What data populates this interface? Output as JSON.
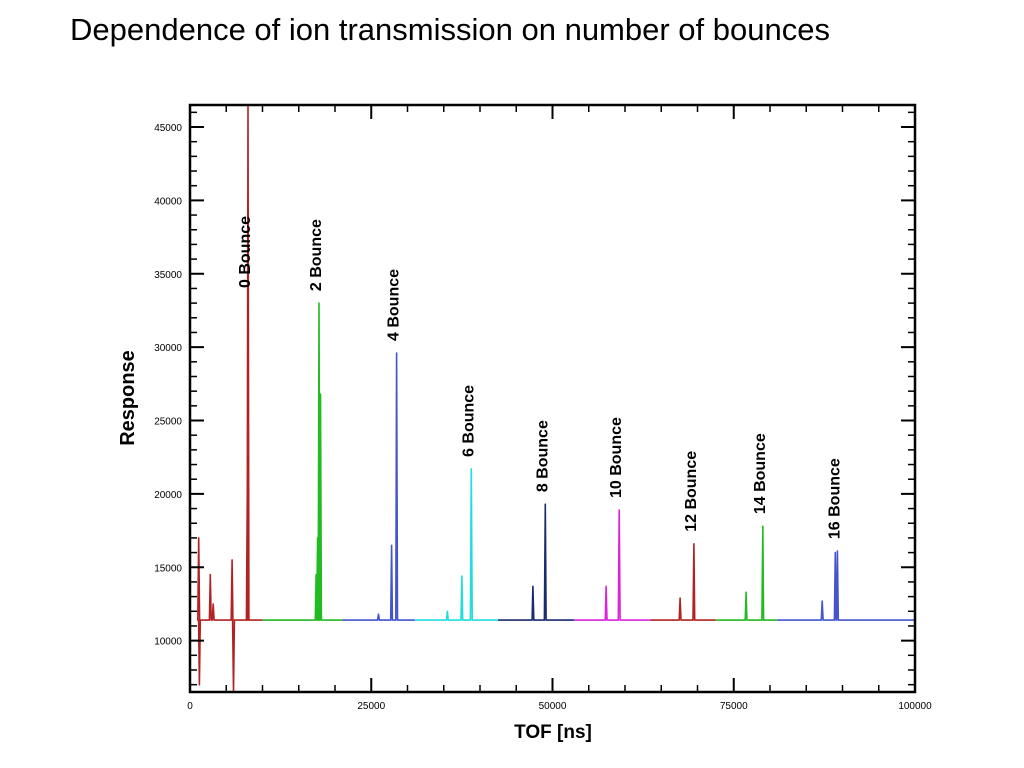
{
  "slide": {
    "title": "Dependence of ion transmission on number of bounces"
  },
  "chart_data": {
    "type": "line",
    "title": "",
    "xlabel": "TOF [ns]",
    "ylabel": "Response",
    "xlim": [
      0,
      100000
    ],
    "ylim": [
      6500,
      46500
    ],
    "x_ticks": [
      0,
      25000,
      50000,
      75000,
      100000
    ],
    "y_ticks": [
      10000,
      15000,
      20000,
      25000,
      30000,
      35000,
      40000,
      45000
    ],
    "grid": false,
    "baseline": 11400,
    "segments": [
      {
        "label": "0 Bounce",
        "color": "#b22222",
        "x_range": [
          1000,
          10000
        ],
        "peak_x": 8000,
        "peak_y": 46500,
        "extra_peaks": [
          [
            1200,
            17000
          ],
          [
            2800,
            14500
          ],
          [
            3200,
            12500
          ],
          [
            5800,
            15500
          ],
          [
            7900,
            20000
          ]
        ],
        "dips": [
          [
            1300,
            7000
          ],
          [
            6000,
            6500
          ]
        ]
      },
      {
        "label": "2 Bounce",
        "color": "#22bb22",
        "x_range": [
          10000,
          21000
        ],
        "peak_x": 17800,
        "peak_y": 33000,
        "extra_peaks": [
          [
            17400,
            14500
          ],
          [
            17600,
            17000
          ],
          [
            18000,
            26800
          ]
        ]
      },
      {
        "label": "4 Bounce",
        "color": "#4455cc",
        "x_range": [
          21000,
          31000
        ],
        "peak_x": 28500,
        "peak_y": 29600,
        "extra_peaks": [
          [
            27800,
            16500
          ],
          [
            26000,
            11800
          ]
        ]
      },
      {
        "label": "6 Bounce",
        "color": "#22dddd",
        "x_range": [
          31000,
          42500
        ],
        "peak_x": 38800,
        "peak_y": 21700,
        "extra_peaks": [
          [
            37500,
            14400
          ],
          [
            35500,
            12000
          ]
        ]
      },
      {
        "label": "8 Bounce",
        "color": "#1a2a6c",
        "x_range": [
          42500,
          53000
        ],
        "peak_x": 49000,
        "peak_y": 19300,
        "extra_peaks": [
          [
            47300,
            13700
          ]
        ]
      },
      {
        "label": "10 Bounce",
        "color": "#dd22dd",
        "x_range": [
          53000,
          63500
        ],
        "peak_x": 59200,
        "peak_y": 18900,
        "extra_peaks": [
          [
            57400,
            13700
          ]
        ]
      },
      {
        "label": "12 Bounce",
        "color": "#b22222",
        "x_range": [
          63500,
          72500
        ],
        "peak_x": 69500,
        "peak_y": 16600,
        "extra_peaks": [
          [
            67600,
            12900
          ]
        ]
      },
      {
        "label": "14 Bounce",
        "color": "#22bb22",
        "x_range": [
          72500,
          81000
        ],
        "peak_x": 79000,
        "peak_y": 17800,
        "extra_peaks": [
          [
            76700,
            13300
          ]
        ]
      },
      {
        "label": "16 Bounce",
        "color": "#4455cc",
        "x_range": [
          81000,
          100000
        ],
        "peak_x": 89300,
        "peak_y": 16100,
        "extra_peaks": [
          [
            87200,
            12700
          ],
          [
            89000,
            16000
          ]
        ]
      }
    ]
  }
}
